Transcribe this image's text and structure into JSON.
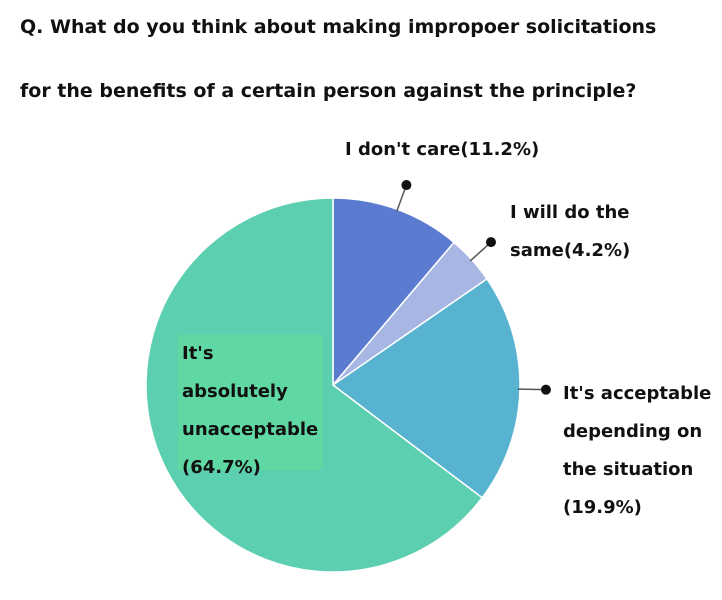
{
  "chart_data": {
    "type": "pie",
    "title": [
      "Q. What do you think about making impropoer solicitations",
      "for the benefits of a certain person against the principle?"
    ],
    "categories": [
      "I don't care",
      "I will do the same",
      "It's acceptable depending on the situation",
      "It's absolutely unacceptable"
    ],
    "values": [
      11.2,
      4.2,
      19.9,
      64.7
    ],
    "value_labels": [
      "(11.2%)",
      "(4.2%)",
      "(19.9%)",
      "(64.7%)"
    ],
    "colors": [
      "#5b7bd0",
      "#a8b6e4",
      "#57b3cf",
      "#5ccfb0"
    ]
  }
}
